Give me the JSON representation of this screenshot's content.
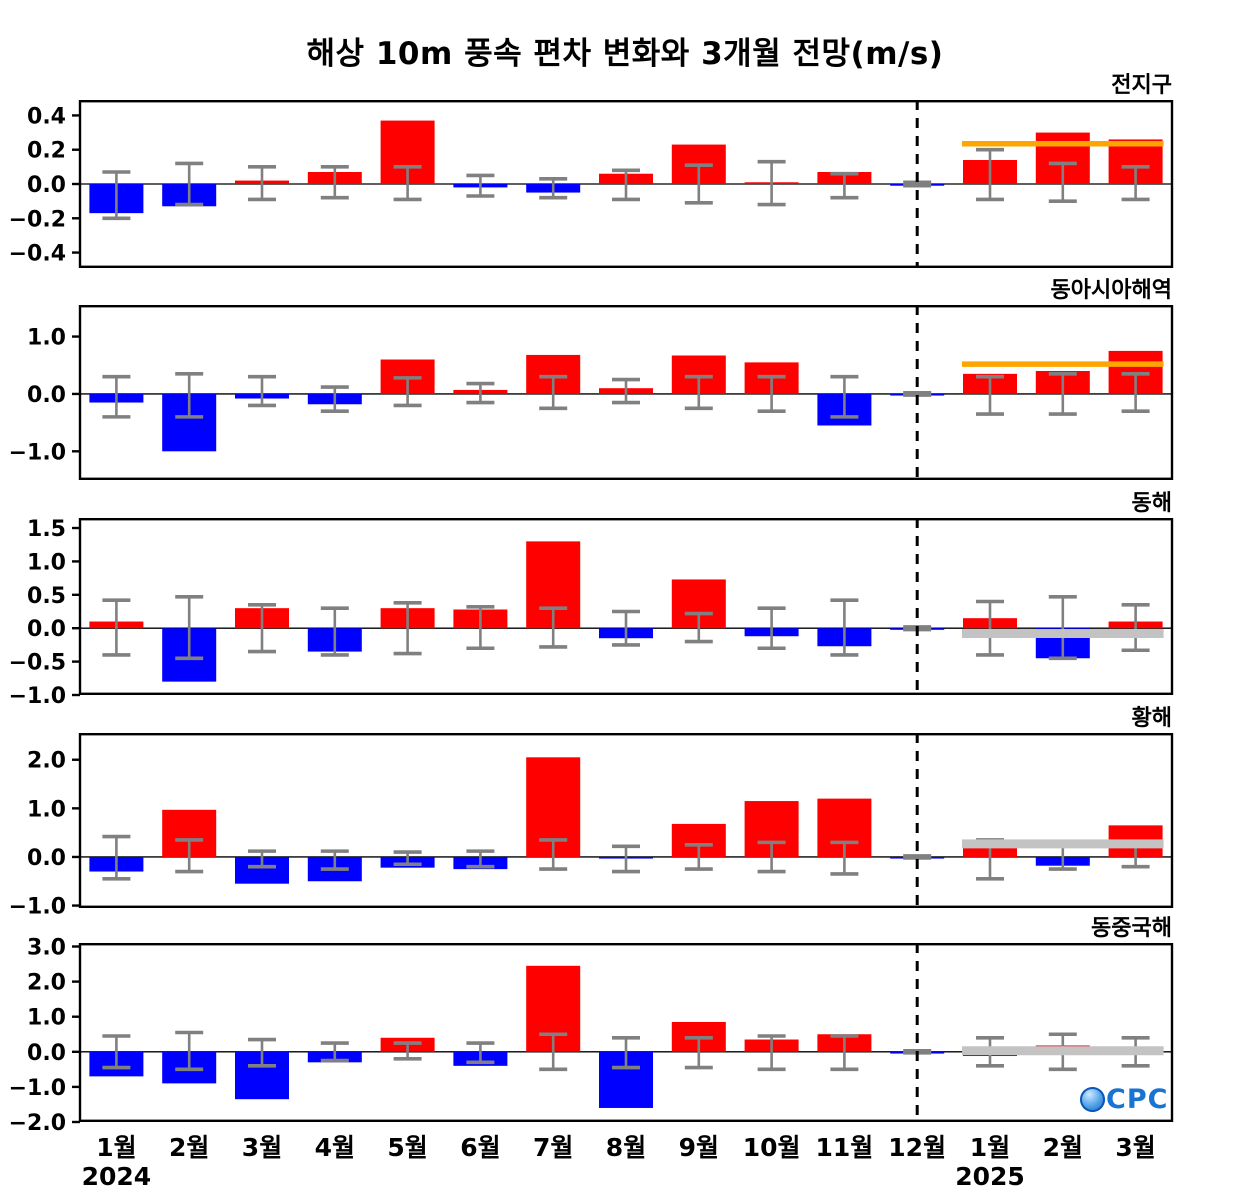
{
  "title": "해상 10m 풍속 편차 변화와 3개월 전망(m/s)",
  "logo_text": "CPC",
  "colors": {
    "positive": "#ff0000",
    "negative": "#0000ff",
    "error": "#808080",
    "divider": "#000000",
    "forecast_orange": "#ffa500",
    "forecast_gray": "#c3c3c3"
  },
  "x_axis": {
    "labels": [
      "1월",
      "2월",
      "3월",
      "4월",
      "5월",
      "6월",
      "7월",
      "8월",
      "9월",
      "10월",
      "11월",
      "12월",
      "1월",
      "2월",
      "3월"
    ],
    "year_left": "2024",
    "year_right": "2025",
    "forecast_start_index": 12
  },
  "chart_data": [
    {
      "type": "bar",
      "title": "전지구",
      "ylim": [
        -0.49,
        0.49
      ],
      "yticks": [
        0.4,
        0.2,
        0.0,
        -0.2,
        -0.4
      ],
      "values": [
        -0.17,
        -0.13,
        0.02,
        0.07,
        0.37,
        -0.02,
        -0.05,
        0.06,
        0.23,
        0.01,
        0.07,
        -0.01,
        0.14,
        0.3,
        0.26
      ],
      "err_hi": [
        0.07,
        0.12,
        0.1,
        0.1,
        0.1,
        0.05,
        0.03,
        0.08,
        0.11,
        0.13,
        0.06,
        0.01,
        0.2,
        0.12,
        0.1
      ],
      "err_lo": [
        -0.2,
        -0.12,
        -0.09,
        -0.08,
        -0.09,
        -0.07,
        -0.08,
        -0.09,
        -0.11,
        -0.12,
        -0.08,
        -0.01,
        -0.09,
        -0.1,
        -0.09
      ],
      "forecast_line": {
        "value": 0.235,
        "color": "#ffa500",
        "thickness": 5.5
      }
    },
    {
      "type": "bar",
      "title": "동아시아해역",
      "ylim": [
        -1.5,
        1.55
      ],
      "yticks": [
        1.0,
        0.0,
        -1.0
      ],
      "values": [
        -0.15,
        -1.0,
        -0.08,
        -0.18,
        0.6,
        0.07,
        0.68,
        0.1,
        0.67,
        0.55,
        -0.55,
        -0.02,
        0.35,
        0.4,
        0.75
      ],
      "err_hi": [
        0.3,
        0.35,
        0.3,
        0.12,
        0.28,
        0.18,
        0.3,
        0.25,
        0.3,
        0.3,
        0.3,
        0.02,
        0.3,
        0.35,
        0.35
      ],
      "err_lo": [
        -0.4,
        -0.4,
        -0.2,
        -0.3,
        -0.2,
        -0.15,
        -0.25,
        -0.15,
        -0.25,
        -0.3,
        -0.4,
        -0.02,
        -0.35,
        -0.35,
        -0.3
      ],
      "forecast_line": {
        "value": 0.52,
        "color": "#ffa500",
        "thickness": 5.5
      }
    },
    {
      "type": "bar",
      "title": "동해",
      "ylim": [
        -1.0,
        1.65
      ],
      "yticks": [
        1.5,
        1.0,
        0.5,
        0.0,
        -0.5,
        -1.0
      ],
      "values": [
        0.1,
        -0.8,
        0.3,
        -0.35,
        0.3,
        0.28,
        1.3,
        -0.15,
        0.73,
        -0.12,
        -0.27,
        -0.02,
        0.15,
        -0.45,
        0.1
      ],
      "err_hi": [
        0.42,
        0.47,
        0.35,
        0.3,
        0.38,
        0.32,
        0.3,
        0.25,
        0.22,
        0.3,
        0.42,
        0.02,
        0.4,
        0.47,
        0.35
      ],
      "err_lo": [
        -0.4,
        -0.45,
        -0.35,
        -0.4,
        -0.38,
        -0.3,
        -0.28,
        -0.25,
        -0.2,
        -0.3,
        -0.4,
        -0.02,
        -0.4,
        -0.45,
        -0.33
      ],
      "forecast_line": {
        "value": -0.08,
        "color": "#c3c3c3",
        "thickness": 9
      }
    },
    {
      "type": "bar",
      "title": "황해",
      "ylim": [
        -1.05,
        2.55
      ],
      "yticks": [
        2.0,
        1.0,
        0.0,
        -1.0
      ],
      "values": [
        -0.3,
        0.97,
        -0.55,
        -0.5,
        -0.22,
        -0.25,
        2.05,
        -0.03,
        0.68,
        1.15,
        1.2,
        -0.03,
        0.35,
        -0.18,
        0.65
      ],
      "err_hi": [
        0.42,
        0.35,
        0.12,
        0.12,
        0.1,
        0.12,
        0.35,
        0.22,
        0.25,
        0.3,
        0.3,
        0.02,
        0.35,
        0.25,
        0.3
      ],
      "err_lo": [
        -0.45,
        -0.3,
        -0.2,
        -0.25,
        -0.15,
        -0.2,
        -0.25,
        -0.3,
        -0.25,
        -0.3,
        -0.35,
        -0.02,
        -0.45,
        -0.25,
        -0.2
      ],
      "forecast_line": {
        "value": 0.27,
        "color": "#c3c3c3",
        "thickness": 9
      }
    },
    {
      "type": "bar",
      "title": "동중국해",
      "ylim": [
        -2.0,
        3.1
      ],
      "yticks": [
        3.0,
        2.0,
        1.0,
        0.0,
        -1.0,
        -2.0
      ],
      "values": [
        -0.7,
        -0.9,
        -1.35,
        -0.3,
        0.4,
        -0.4,
        2.45,
        -1.6,
        0.85,
        0.35,
        0.5,
        -0.05,
        -0.12,
        0.18,
        0.12
      ],
      "err_hi": [
        0.45,
        0.55,
        0.35,
        0.25,
        0.25,
        0.25,
        0.5,
        0.4,
        0.4,
        0.45,
        0.45,
        0.03,
        0.4,
        0.5,
        0.4
      ],
      "err_lo": [
        -0.45,
        -0.5,
        -0.4,
        -0.25,
        -0.2,
        -0.3,
        -0.5,
        -0.45,
        -0.45,
        -0.5,
        -0.5,
        -0.03,
        -0.4,
        -0.5,
        -0.4
      ],
      "forecast_line": {
        "value": 0.03,
        "color": "#c3c3c3",
        "thickness": 9
      }
    }
  ]
}
